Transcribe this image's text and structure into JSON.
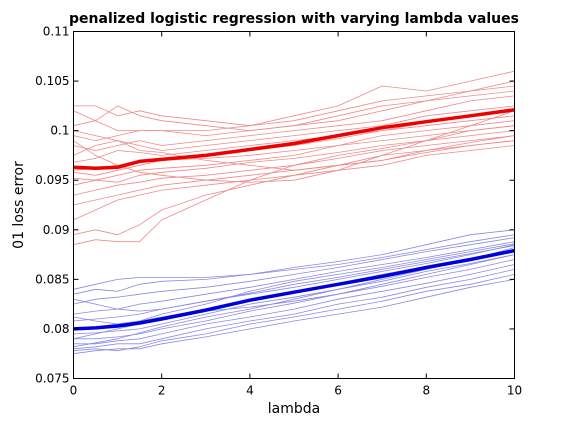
{
  "chart_data": {
    "type": "line",
    "title": "penalized logistic regression with varying lambda values",
    "xlabel": "lambda",
    "ylabel": "01 loss error",
    "xlim": [
      0,
      10
    ],
    "ylim": [
      0.075,
      0.11
    ],
    "xticks": [
      0,
      2,
      4,
      6,
      8,
      10
    ],
    "xtick_labels": [
      "0",
      "2",
      "4",
      "6",
      "8",
      "10"
    ],
    "yticks": [
      0.075,
      0.08,
      0.085,
      0.09,
      0.095,
      0.1,
      0.105,
      0.11
    ],
    "ytick_labels": [
      "0.075",
      "0.08",
      "0.085",
      "0.09",
      "0.095",
      "0.1",
      "0.105",
      "0.11"
    ],
    "grid": false,
    "legend": "none",
    "colors": {
      "red_mean": "#ee0000",
      "red_runs": "#f08a8a",
      "blue_mean": "#0000dd",
      "blue_runs": "#8a8ae6"
    },
    "x": [
      0,
      0.5,
      1,
      1.5,
      2,
      3,
      4,
      5,
      6,
      7,
      8,
      9,
      10
    ],
    "series": [
      {
        "group": "red-mean",
        "values": [
          0.0963,
          0.0962,
          0.0963,
          0.0969,
          0.0971,
          0.0975,
          0.0981,
          0.0987,
          0.0995,
          0.1003,
          0.1009,
          0.1015,
          0.1021
        ]
      },
      {
        "group": "blue-mean",
        "values": [
          0.08,
          0.0801,
          0.0803,
          0.0806,
          0.081,
          0.0819,
          0.0829,
          0.0837,
          0.0845,
          0.0853,
          0.0862,
          0.087,
          0.0879
        ]
      },
      {
        "group": "red-run",
        "values": [
          0.1025,
          0.1025,
          0.1015,
          0.102,
          0.1015,
          0.101,
          0.1005,
          0.101,
          0.102,
          0.103,
          0.1035,
          0.104,
          0.1045
        ]
      },
      {
        "group": "red-run",
        "values": [
          0.102,
          0.101,
          0.1025,
          0.1015,
          0.101,
          0.1005,
          0.1,
          0.1005,
          0.1015,
          0.1025,
          0.103,
          0.1035,
          0.104
        ]
      },
      {
        "group": "red-run",
        "values": [
          0.1005,
          0.101,
          0.1,
          0.1,
          0.1,
          0.1,
          0.1005,
          0.1015,
          0.1025,
          0.1045,
          0.104,
          0.105,
          0.106
        ]
      },
      {
        "group": "red-run",
        "values": [
          0.0995,
          0.099,
          0.0995,
          0.1,
          0.1,
          0.0995,
          0.1,
          0.1005,
          0.101,
          0.102,
          0.103,
          0.104,
          0.105
        ]
      },
      {
        "group": "red-run",
        "values": [
          0.0985,
          0.098,
          0.0985,
          0.099,
          0.0985,
          0.099,
          0.0995,
          0.1,
          0.1005,
          0.101,
          0.102,
          0.103,
          0.1035
        ]
      },
      {
        "group": "red-run",
        "values": [
          0.0975,
          0.0985,
          0.099,
          0.0985,
          0.098,
          0.0985,
          0.099,
          0.0995,
          0.1,
          0.1005,
          0.1015,
          0.102,
          0.1025
        ]
      },
      {
        "group": "red-run",
        "values": [
          0.0968,
          0.0972,
          0.098,
          0.0978,
          0.0975,
          0.098,
          0.0985,
          0.099,
          0.0995,
          0.1,
          0.1005,
          0.101,
          0.1015
        ]
      },
      {
        "group": "red-run",
        "values": [
          0.096,
          0.0962,
          0.0965,
          0.097,
          0.0972,
          0.0975,
          0.098,
          0.0985,
          0.0992,
          0.1,
          0.1008,
          0.1015,
          0.1022
        ]
      },
      {
        "group": "red-run",
        "values": [
          0.0958,
          0.0955,
          0.096,
          0.0965,
          0.097,
          0.0972,
          0.0975,
          0.098,
          0.0985,
          0.0995,
          0.1,
          0.1005,
          0.101
        ]
      },
      {
        "group": "red-run",
        "values": [
          0.0952,
          0.095,
          0.0955,
          0.096,
          0.0962,
          0.0965,
          0.097,
          0.0975,
          0.0985,
          0.099,
          0.0995,
          0.1,
          0.1005
        ]
      },
      {
        "group": "red-run",
        "values": [
          0.0945,
          0.095,
          0.0948,
          0.0955,
          0.0958,
          0.0962,
          0.0968,
          0.0972,
          0.0978,
          0.0985,
          0.099,
          0.0995,
          0.1
        ]
      },
      {
        "group": "red-run",
        "values": [
          0.0935,
          0.094,
          0.0945,
          0.0948,
          0.0952,
          0.0955,
          0.096,
          0.0965,
          0.0972,
          0.098,
          0.0985,
          0.099,
          0.0995
        ]
      },
      {
        "group": "red-run",
        "values": [
          0.0925,
          0.093,
          0.0935,
          0.094,
          0.0945,
          0.095,
          0.0955,
          0.096,
          0.0965,
          0.097,
          0.0978,
          0.0985,
          0.099
        ]
      },
      {
        "group": "red-run",
        "values": [
          0.091,
          0.092,
          0.093,
          0.0935,
          0.094,
          0.0945,
          0.095,
          0.0955,
          0.096,
          0.0965,
          0.0975,
          0.098,
          0.0985
        ]
      },
      {
        "group": "red-run",
        "values": [
          0.0895,
          0.09,
          0.0895,
          0.0905,
          0.092,
          0.0935,
          0.0945,
          0.0955,
          0.0965,
          0.0975,
          0.098,
          0.0985,
          0.099
        ]
      },
      {
        "group": "red-run",
        "values": [
          0.0885,
          0.089,
          0.0888,
          0.0888,
          0.091,
          0.093,
          0.095,
          0.0965,
          0.0975,
          0.0982,
          0.099,
          0.1,
          0.1005
        ]
      },
      {
        "group": "red-run",
        "values": [
          0.1,
          0.0995,
          0.099,
          0.098,
          0.0978,
          0.097,
          0.0965,
          0.096,
          0.0965,
          0.097,
          0.098,
          0.0988,
          0.0995
        ]
      },
      {
        "group": "red-run",
        "values": [
          0.099,
          0.0975,
          0.0965,
          0.0958,
          0.0955,
          0.095,
          0.0948,
          0.095,
          0.096,
          0.0975,
          0.099,
          0.1005,
          0.102
        ]
      },
      {
        "group": "blue-run",
        "values": [
          0.084,
          0.0845,
          0.085,
          0.0852,
          0.0852,
          0.0852,
          0.0855,
          0.0862,
          0.0868,
          0.0875,
          0.0885,
          0.0895,
          0.09
        ]
      },
      {
        "group": "blue-run",
        "values": [
          0.0835,
          0.084,
          0.0838,
          0.0845,
          0.0848,
          0.085,
          0.0855,
          0.086,
          0.0865,
          0.0872,
          0.088,
          0.0888,
          0.0895
        ]
      },
      {
        "group": "blue-run",
        "values": [
          0.0825,
          0.083,
          0.0832,
          0.0835,
          0.0838,
          0.0842,
          0.0848,
          0.0855,
          0.0862,
          0.087,
          0.0878,
          0.0885,
          0.0892
        ]
      },
      {
        "group": "blue-run",
        "values": [
          0.0815,
          0.0818,
          0.082,
          0.0825,
          0.0828,
          0.0835,
          0.0842,
          0.085,
          0.0858,
          0.0865,
          0.0872,
          0.088,
          0.0888
        ]
      },
      {
        "group": "blue-run",
        "values": [
          0.0808,
          0.081,
          0.0812,
          0.0815,
          0.082,
          0.0828,
          0.0836,
          0.0845,
          0.0852,
          0.086,
          0.0868,
          0.0876,
          0.0884
        ]
      },
      {
        "group": "blue-run",
        "values": [
          0.08,
          0.0802,
          0.0805,
          0.0808,
          0.0812,
          0.082,
          0.083,
          0.0838,
          0.0846,
          0.0855,
          0.0863,
          0.0871,
          0.088
        ]
      },
      {
        "group": "blue-run",
        "values": [
          0.0795,
          0.0796,
          0.0798,
          0.08,
          0.0805,
          0.0815,
          0.0825,
          0.0832,
          0.084,
          0.0848,
          0.0858,
          0.0866,
          0.0875
        ]
      },
      {
        "group": "blue-run",
        "values": [
          0.079,
          0.079,
          0.0792,
          0.0795,
          0.08,
          0.0808,
          0.0818,
          0.0826,
          0.0835,
          0.0843,
          0.0852,
          0.086,
          0.087
        ]
      },
      {
        "group": "blue-run",
        "values": [
          0.0785,
          0.0785,
          0.0788,
          0.079,
          0.0795,
          0.0805,
          0.0812,
          0.082,
          0.083,
          0.0838,
          0.0846,
          0.0855,
          0.0865
        ]
      },
      {
        "group": "blue-run",
        "values": [
          0.078,
          0.0782,
          0.0785,
          0.0785,
          0.079,
          0.08,
          0.0808,
          0.0815,
          0.0825,
          0.0832,
          0.0842,
          0.085,
          0.086
        ]
      },
      {
        "group": "blue-run",
        "values": [
          0.0778,
          0.078,
          0.0778,
          0.0782,
          0.0788,
          0.0795,
          0.0805,
          0.0812,
          0.082,
          0.0828,
          0.0838,
          0.0845,
          0.0855
        ]
      },
      {
        "group": "blue-run",
        "values": [
          0.0775,
          0.0778,
          0.078,
          0.078,
          0.0785,
          0.0792,
          0.08,
          0.0808,
          0.0815,
          0.0822,
          0.0832,
          0.0842,
          0.085
        ]
      },
      {
        "group": "blue-run",
        "values": [
          0.0812,
          0.0808,
          0.0805,
          0.0808,
          0.0815,
          0.0825,
          0.0838,
          0.0848,
          0.0855,
          0.0862,
          0.087,
          0.0878,
          0.0886
        ]
      },
      {
        "group": "blue-run",
        "values": [
          0.079,
          0.0795,
          0.08,
          0.0805,
          0.081,
          0.0818,
          0.0822,
          0.0828,
          0.0835,
          0.0845,
          0.0855,
          0.0865,
          0.0875
        ]
      },
      {
        "group": "blue-run",
        "values": [
          0.083,
          0.0825,
          0.082,
          0.0818,
          0.082,
          0.0828,
          0.0835,
          0.0842,
          0.085,
          0.0858,
          0.0866,
          0.0875,
          0.0885
        ]
      },
      {
        "group": "blue-run",
        "values": [
          0.0782,
          0.0786,
          0.079,
          0.0796,
          0.0802,
          0.0812,
          0.082,
          0.083,
          0.084,
          0.085,
          0.086,
          0.087,
          0.0882
        ]
      }
    ]
  }
}
